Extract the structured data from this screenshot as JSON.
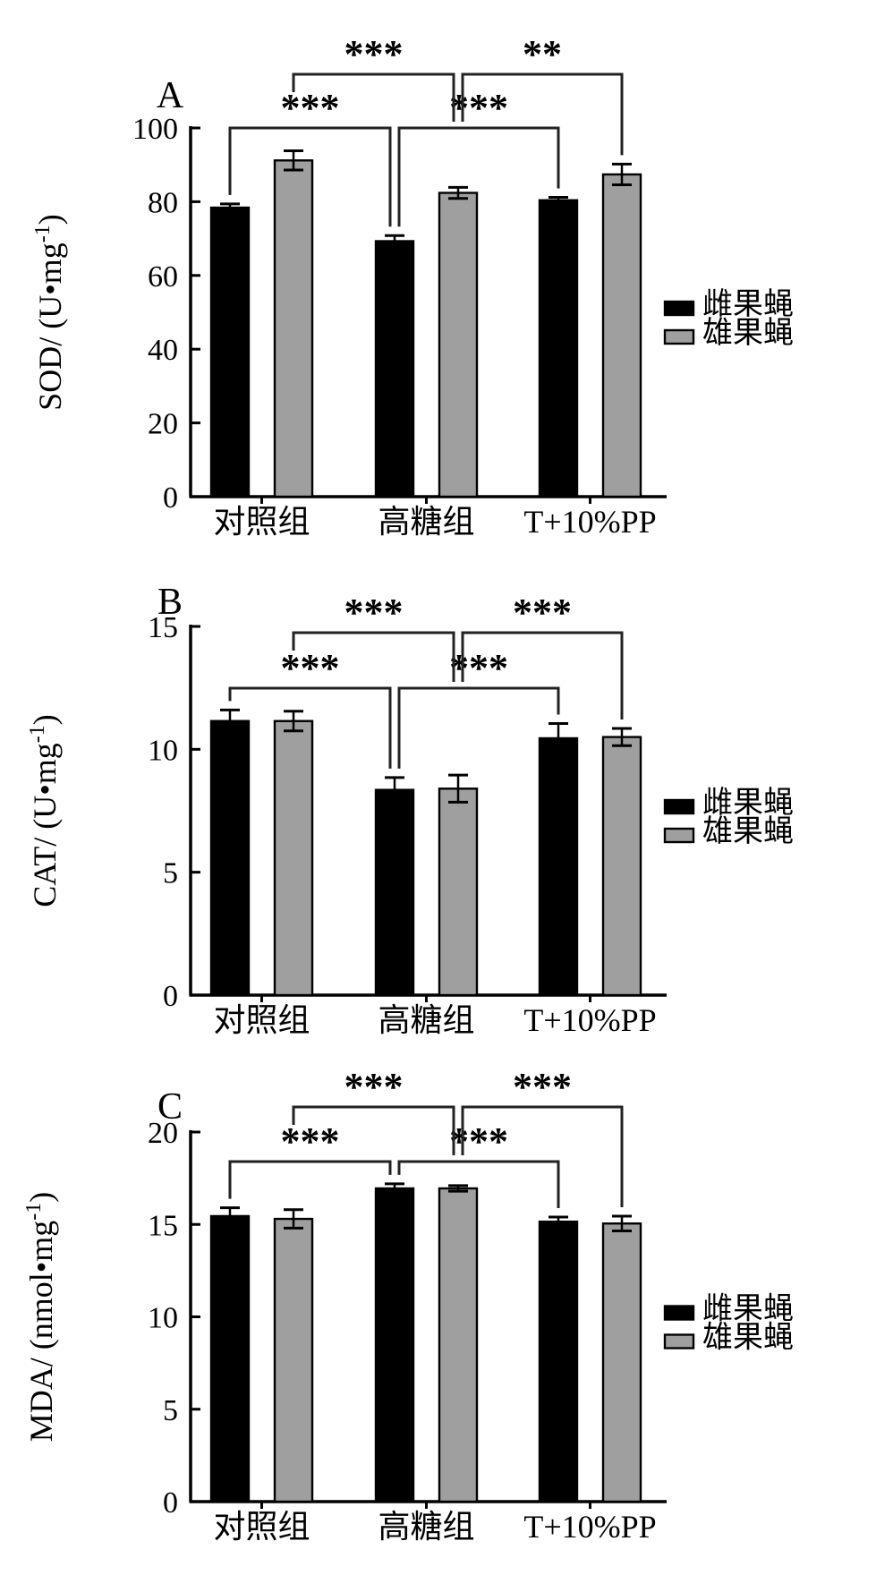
{
  "legend": {
    "female_label": "雌果蝇",
    "male_label": "雄果蝇",
    "female_color": "#000000",
    "male_color": "#9f9f9f"
  },
  "chart_data": [
    {
      "panel": "A",
      "type": "bar",
      "ylabel": "SOD/ (U•mg⁻¹)",
      "ylabel_parts": {
        "pre": "SOD/ (U•mg",
        "sup": "-1",
        "post": ")"
      },
      "ylim": [
        0,
        100
      ],
      "yticks": [
        0,
        20,
        40,
        60,
        80,
        100
      ],
      "categories": [
        "对照组",
        "高糖组",
        "T+10%PP"
      ],
      "series": [
        {
          "key": "female",
          "name": "雌果蝇",
          "color": "#000000",
          "values": [
            78.4,
            69.3,
            80.4
          ],
          "errors": [
            1.0,
            1.5,
            0.8
          ]
        },
        {
          "key": "male",
          "name": "雄果蝇",
          "color": "#9f9f9f",
          "values": [
            91.2,
            82.4,
            87.4
          ],
          "errors": [
            2.6,
            1.5,
            2.8
          ]
        }
      ],
      "significance": [
        {
          "label": "***",
          "row": "lower",
          "from": {
            "series": "female",
            "group": 0
          },
          "to": {
            "series": "female",
            "group": 1
          }
        },
        {
          "label": "***",
          "row": "lower",
          "from": {
            "series": "female",
            "group": 1
          },
          "to": {
            "series": "female",
            "group": 2
          }
        },
        {
          "label": "***",
          "row": "upper",
          "from": {
            "series": "male",
            "group": 0
          },
          "to": {
            "series": "male",
            "group": 1
          }
        },
        {
          "label": "**",
          "row": "upper",
          "from": {
            "series": "male",
            "group": 1
          },
          "to": {
            "series": "male",
            "group": 2
          }
        }
      ],
      "legend_entries": [
        "雌果蝇",
        "雄果蝇"
      ]
    },
    {
      "panel": "B",
      "type": "bar",
      "ylabel": "CAT/ (U•mg⁻¹)",
      "ylabel_parts": {
        "pre": "CAT/ (U•mg",
        "sup": "-1",
        "post": ")"
      },
      "ylim": [
        0,
        15
      ],
      "yticks": [
        0,
        5,
        10,
        15
      ],
      "categories": [
        "对照组",
        "高糖组",
        "T+10%PP"
      ],
      "series": [
        {
          "key": "female",
          "name": "雌果蝇",
          "color": "#000000",
          "values": [
            11.15,
            8.35,
            10.45
          ],
          "errors": [
            0.45,
            0.5,
            0.6
          ]
        },
        {
          "key": "male",
          "name": "雄果蝇",
          "color": "#9f9f9f",
          "values": [
            11.15,
            8.4,
            10.5
          ],
          "errors": [
            0.4,
            0.55,
            0.35
          ]
        }
      ],
      "significance": [
        {
          "label": "***",
          "row": "lower",
          "from": {
            "series": "female",
            "group": 0
          },
          "to": {
            "series": "female",
            "group": 1
          }
        },
        {
          "label": "***",
          "row": "lower",
          "from": {
            "series": "female",
            "group": 1
          },
          "to": {
            "series": "female",
            "group": 2
          }
        },
        {
          "label": "***",
          "row": "upper",
          "from": {
            "series": "male",
            "group": 0
          },
          "to": {
            "series": "male",
            "group": 1
          }
        },
        {
          "label": "***",
          "row": "upper",
          "from": {
            "series": "male",
            "group": 1
          },
          "to": {
            "series": "male",
            "group": 2
          }
        }
      ],
      "legend_entries": [
        "雌果蝇",
        "雄果蝇"
      ]
    },
    {
      "panel": "C",
      "type": "bar",
      "ylabel": "MDA/ (nmol•mg⁻¹)",
      "ylabel_parts": {
        "pre": "MDA/ (nmol•mg",
        "sup": "-1",
        "post": ")"
      },
      "ylim": [
        0,
        20
      ],
      "yticks": [
        0,
        5,
        10,
        15,
        20
      ],
      "categories": [
        "对照组",
        "高糖组",
        "T+10%PP"
      ],
      "series": [
        {
          "key": "female",
          "name": "雌果蝇",
          "color": "#000000",
          "values": [
            15.45,
            16.95,
            15.15
          ],
          "errors": [
            0.45,
            0.25,
            0.25
          ]
        },
        {
          "key": "male",
          "name": "雄果蝇",
          "color": "#9f9f9f",
          "values": [
            15.3,
            16.95,
            15.05
          ],
          "errors": [
            0.5,
            0.15,
            0.4
          ]
        }
      ],
      "significance": [
        {
          "label": "***",
          "row": "lower",
          "from": {
            "series": "female",
            "group": 0
          },
          "to": {
            "series": "female",
            "group": 1
          }
        },
        {
          "label": "***",
          "row": "lower",
          "from": {
            "series": "female",
            "group": 1
          },
          "to": {
            "series": "female",
            "group": 2
          }
        },
        {
          "label": "***",
          "row": "upper",
          "from": {
            "series": "male",
            "group": 0
          },
          "to": {
            "series": "male",
            "group": 1
          }
        },
        {
          "label": "***",
          "row": "upper",
          "from": {
            "series": "male",
            "group": 1
          },
          "to": {
            "series": "male",
            "group": 2
          }
        }
      ],
      "legend_entries": [
        "雌果蝇",
        "雄果蝇"
      ]
    }
  ]
}
